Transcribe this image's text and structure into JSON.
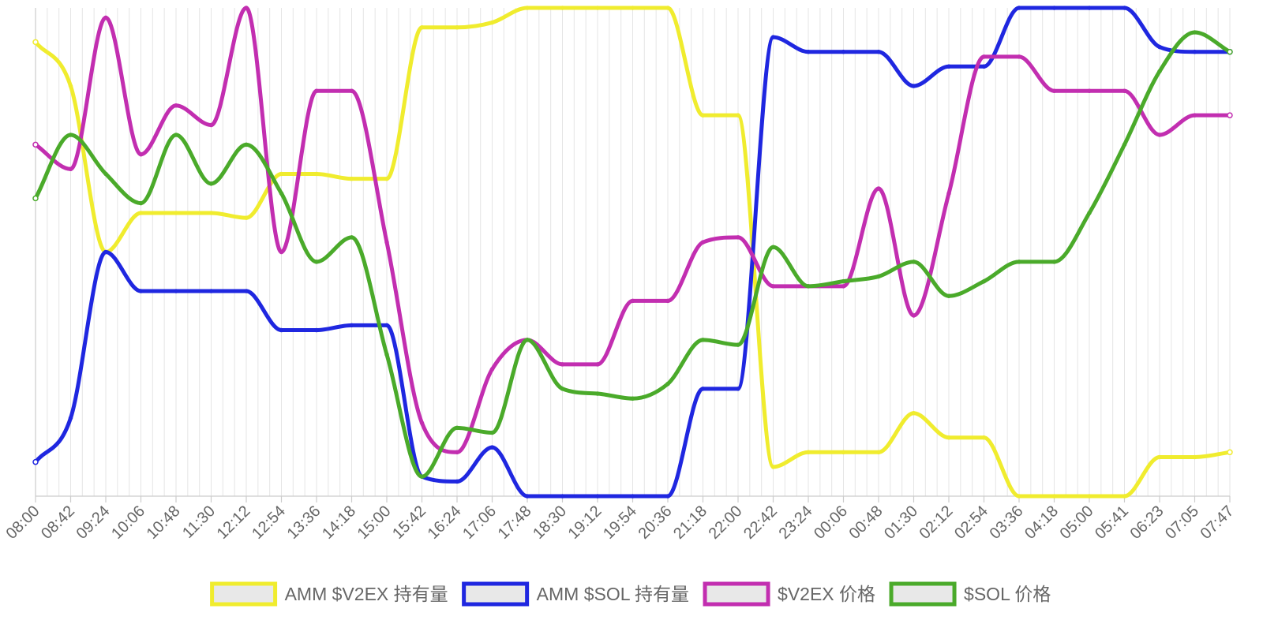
{
  "chart_data": {
    "type": "line",
    "title": "",
    "xlabel": "",
    "ylabel": "",
    "grid": "vertical",
    "legend_position": "bottom",
    "categories": [
      "08:00",
      "08:42",
      "09:24",
      "10:06",
      "10:48",
      "11:30",
      "12:12",
      "12:54",
      "13:36",
      "14:18",
      "15:00",
      "15:42",
      "16:24",
      "17:06",
      "17:48",
      "18:30",
      "19:12",
      "19:54",
      "20:36",
      "21:18",
      "22:00",
      "22:42",
      "23:24",
      "00:06",
      "00:48",
      "01:30",
      "02:12",
      "02:54",
      "03:36",
      "04:18",
      "05:00",
      "05:41",
      "06:23",
      "07:05",
      "07:47"
    ],
    "normalized_range": [
      0,
      100
    ],
    "series": [
      {
        "name": "AMM $V2EX 持有量",
        "color": "#f0ec2e",
        "values": [
          93,
          84,
          50,
          58,
          58,
          58,
          57,
          66,
          66,
          65,
          65,
          96,
          96,
          97,
          100,
          100,
          100,
          100,
          100,
          78,
          78,
          6,
          9,
          9,
          9,
          17,
          12,
          12,
          0,
          0,
          0,
          0,
          8,
          8,
          9
        ]
      },
      {
        "name": "AMM $SOL 持有量",
        "color": "#1f27e0",
        "values": [
          7,
          16,
          50,
          42,
          42,
          42,
          42,
          34,
          34,
          35,
          35,
          4,
          3,
          10,
          0,
          0,
          0,
          0,
          0,
          22,
          22,
          94,
          91,
          91,
          91,
          84,
          88,
          88,
          100,
          100,
          100,
          100,
          92,
          91,
          91
        ]
      },
      {
        "name": "$V2EX 价格",
        "color": "#c22eb0",
        "values": [
          72,
          67,
          98,
          70,
          80,
          76,
          100,
          50,
          83,
          83,
          52,
          15,
          9,
          26,
          32,
          27,
          27,
          40,
          40,
          52,
          53,
          43,
          43,
          43,
          63,
          37,
          62,
          90,
          90,
          83,
          83,
          83,
          74,
          78,
          78
        ]
      },
      {
        "name": "$SOL 价格",
        "color": "#4aaa2a",
        "values": [
          61,
          74,
          66,
          60,
          74,
          64,
          72,
          62,
          48,
          53,
          29,
          4,
          14,
          13,
          32,
          22,
          21,
          20,
          23,
          32,
          31,
          51,
          43,
          44,
          45,
          48,
          41,
          44,
          48,
          48,
          58,
          72,
          87,
          95,
          91
        ]
      }
    ]
  }
}
